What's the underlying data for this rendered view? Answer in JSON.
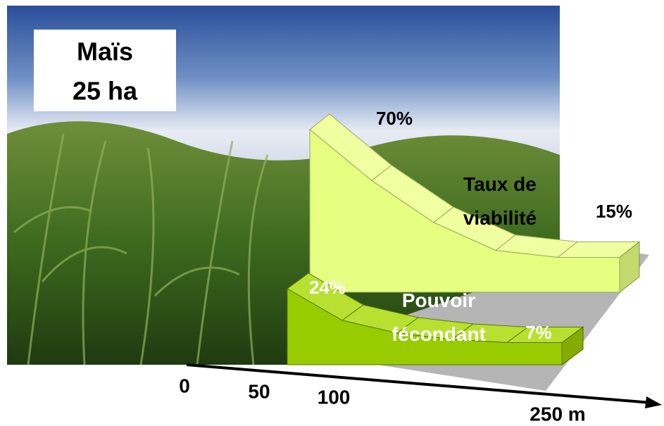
{
  "label_box": {
    "lines": [
      "Maïs",
      "25 ha"
    ]
  },
  "chart_data": {
    "type": "ribbon3d",
    "x": [
      0,
      50,
      100,
      150,
      200,
      250
    ],
    "xticks": [
      0,
      50,
      100,
      {
        "value": 250,
        "label": "250 m"
      }
    ],
    "series": [
      {
        "name": "Taux de viabilité",
        "color": "#e6ff80",
        "values": [
          70,
          48,
          30,
          18,
          15,
          15
        ],
        "value_labels": [
          "70%",
          null,
          null,
          null,
          null,
          "15%"
        ]
      },
      {
        "name": "Pouvoir fécondant",
        "color": "#99cc00",
        "values": [
          24,
          14,
          10,
          8,
          7,
          7
        ],
        "value_labels": [
          "24%",
          null,
          null,
          null,
          null,
          "7%"
        ]
      }
    ]
  }
}
